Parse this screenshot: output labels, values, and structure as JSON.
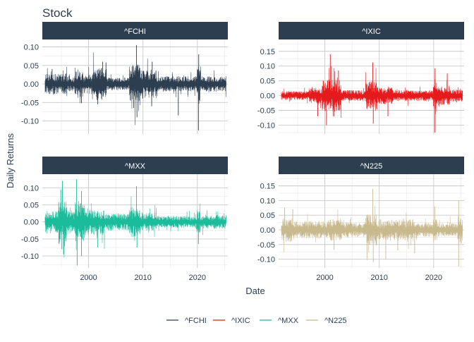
{
  "chart_data": {
    "type": "line",
    "title": "Stock",
    "xlabel": "Date",
    "ylabel": "Daily Returns",
    "x_ticks": [
      2000,
      2010,
      2020
    ],
    "x_range": [
      1991.5,
      2025.6
    ],
    "grid": true,
    "legend_position": "bottom",
    "panels": [
      {
        "name": "^FCHI",
        "color": "#2c3e50",
        "ylim": [
          -0.135,
          0.12
        ],
        "y_ticks": [
          0.1,
          0.05,
          0.0,
          -0.05,
          -0.1
        ],
        "y_tick_labels": [
          "0.10",
          "0.05",
          "0.00",
          "-0.05",
          "-0.10"
        ],
        "x_start": 1992.0,
        "x_end": 2025.3,
        "base_amplitude": 0.013,
        "volatility_regimes": [
          {
            "from": 1992.0,
            "to": 1996.0,
            "level": 1.3
          },
          {
            "from": 1996.0,
            "to": 1997.5,
            "level": 1.0
          },
          {
            "from": 1997.5,
            "to": 1999.0,
            "level": 1.7
          },
          {
            "from": 1999.0,
            "to": 2000.5,
            "level": 1.2
          },
          {
            "from": 2000.5,
            "to": 2003.3,
            "level": 2.0
          },
          {
            "from": 2003.3,
            "to": 2007.5,
            "level": 0.8
          },
          {
            "from": 2007.5,
            "to": 2009.5,
            "level": 2.6
          },
          {
            "from": 2009.5,
            "to": 2012.5,
            "level": 1.7
          },
          {
            "from": 2012.5,
            "to": 2019.9,
            "level": 0.95
          },
          {
            "from": 2019.9,
            "to": 2020.6,
            "level": 2.4
          },
          {
            "from": 2020.6,
            "to": 2025.3,
            "level": 0.95
          }
        ],
        "spikes": [
          {
            "x": 1993.3,
            "y": 0.04
          },
          {
            "x": 1998.7,
            "y": -0.052
          },
          {
            "x": 2001.7,
            "y": -0.055
          },
          {
            "x": 2002.6,
            "y": 0.06
          },
          {
            "x": 2003.2,
            "y": 0.058
          },
          {
            "x": 2008.3,
            "y": -0.065
          },
          {
            "x": 2008.8,
            "y": 0.105
          },
          {
            "x": 2008.9,
            "y": -0.09
          },
          {
            "x": 2011.7,
            "y": 0.06
          },
          {
            "x": 2011.6,
            "y": -0.06
          },
          {
            "x": 2016.5,
            "y": -0.085
          },
          {
            "x": 2020.2,
            "y": -0.125
          },
          {
            "x": 2020.25,
            "y": 0.08
          }
        ]
      },
      {
        "name": "^IXIC",
        "color": "#e41a1c",
        "ylim": [
          -0.13,
          0.19
        ],
        "y_ticks": [
          0.15,
          0.1,
          0.05,
          0.0,
          -0.05,
          -0.1
        ],
        "y_tick_labels": [
          "0.15",
          "0.10",
          "0.05",
          "0.00",
          "-0.05",
          "-0.10"
        ],
        "x_start": 1992.0,
        "x_end": 2025.3,
        "base_amplitude": 0.011,
        "volatility_regimes": [
          {
            "from": 1992.0,
            "to": 1997.0,
            "level": 0.8
          },
          {
            "from": 1997.0,
            "to": 1999.5,
            "level": 1.4
          },
          {
            "from": 1999.5,
            "to": 2003.0,
            "level": 3.0
          },
          {
            "from": 2003.0,
            "to": 2007.5,
            "level": 1.0
          },
          {
            "from": 2007.5,
            "to": 2009.6,
            "level": 2.7
          },
          {
            "from": 2009.6,
            "to": 2012.5,
            "level": 1.6
          },
          {
            "from": 2012.5,
            "to": 2019.9,
            "level": 1.0
          },
          {
            "from": 2019.9,
            "to": 2020.6,
            "level": 2.8
          },
          {
            "from": 2020.6,
            "to": 2023.0,
            "level": 1.8
          },
          {
            "from": 2023.0,
            "to": 2025.3,
            "level": 1.2
          }
        ],
        "spikes": [
          {
            "x": 1998.7,
            "y": -0.07
          },
          {
            "x": 2000.3,
            "y": -0.1
          },
          {
            "x": 2001.0,
            "y": 0.14
          },
          {
            "x": 2001.2,
            "y": 0.1
          },
          {
            "x": 2001.7,
            "y": -0.07
          },
          {
            "x": 2002.5,
            "y": 0.085
          },
          {
            "x": 2008.8,
            "y": 0.112
          },
          {
            "x": 2008.9,
            "y": -0.095
          },
          {
            "x": 2011.6,
            "y": -0.07
          },
          {
            "x": 2020.2,
            "y": -0.125
          },
          {
            "x": 2020.25,
            "y": 0.092
          },
          {
            "x": 2022.5,
            "y": 0.075
          }
        ]
      },
      {
        "name": "^MXX",
        "color": "#1abc9c",
        "ylim": [
          -0.135,
          0.14
        ],
        "y_ticks": [
          0.1,
          0.05,
          0.0,
          -0.05,
          -0.1
        ],
        "y_tick_labels": [
          "0.10",
          "0.05",
          "0.00",
          "-0.05",
          "-0.10"
        ],
        "x_start": 1992.0,
        "x_end": 2025.3,
        "base_amplitude": 0.013,
        "volatility_regimes": [
          {
            "from": 1992.0,
            "to": 1994.5,
            "level": 1.5
          },
          {
            "from": 1994.5,
            "to": 1996.0,
            "level": 3.0
          },
          {
            "from": 1996.0,
            "to": 1997.5,
            "level": 1.6
          },
          {
            "from": 1997.5,
            "to": 1999.3,
            "level": 2.6
          },
          {
            "from": 1999.3,
            "to": 2003.0,
            "level": 1.8
          },
          {
            "from": 2003.0,
            "to": 2007.5,
            "level": 1.1
          },
          {
            "from": 2007.5,
            "to": 2009.6,
            "level": 2.0
          },
          {
            "from": 2009.6,
            "to": 2012.5,
            "level": 1.2
          },
          {
            "from": 2012.5,
            "to": 2019.9,
            "level": 0.8
          },
          {
            "from": 2019.9,
            "to": 2020.6,
            "level": 1.6
          },
          {
            "from": 2020.6,
            "to": 2025.3,
            "level": 0.9
          }
        ],
        "spikes": [
          {
            "x": 1994.9,
            "y": 0.095
          },
          {
            "x": 1995.1,
            "y": -0.08
          },
          {
            "x": 1995.2,
            "y": 0.12
          },
          {
            "x": 1995.4,
            "y": -0.095
          },
          {
            "x": 1997.8,
            "y": 0.125
          },
          {
            "x": 1997.9,
            "y": -0.128
          },
          {
            "x": 1998.7,
            "y": 0.09
          },
          {
            "x": 1998.7,
            "y": -0.1
          },
          {
            "x": 2001.7,
            "y": -0.075
          },
          {
            "x": 2008.8,
            "y": 0.105
          },
          {
            "x": 2008.9,
            "y": -0.075
          },
          {
            "x": 2020.2,
            "y": -0.065
          }
        ]
      },
      {
        "name": "^N225",
        "color": "#c9b98e",
        "ylim": [
          -0.13,
          0.19
        ],
        "y_ticks": [
          0.15,
          0.1,
          0.05,
          0.0,
          -0.05,
          -0.1
        ],
        "y_tick_labels": [
          "0.15",
          "0.10",
          "0.05",
          "0.00",
          "-0.05",
          "-0.10"
        ],
        "x_start": 1992.0,
        "x_end": 2025.3,
        "base_amplitude": 0.014,
        "volatility_regimes": [
          {
            "from": 1992.0,
            "to": 1994.0,
            "level": 1.7
          },
          {
            "from": 1994.0,
            "to": 2000.5,
            "level": 1.3
          },
          {
            "from": 2000.5,
            "to": 2003.3,
            "level": 1.6
          },
          {
            "from": 2003.3,
            "to": 2007.5,
            "level": 1.1
          },
          {
            "from": 2007.5,
            "to": 2009.6,
            "level": 2.2
          },
          {
            "from": 2009.6,
            "to": 2013.5,
            "level": 1.5
          },
          {
            "from": 2013.5,
            "to": 2016.5,
            "level": 1.6
          },
          {
            "from": 2016.5,
            "to": 2019.9,
            "level": 1.0
          },
          {
            "from": 2019.9,
            "to": 2020.6,
            "level": 1.6
          },
          {
            "from": 2020.6,
            "to": 2024.4,
            "level": 1.0
          },
          {
            "from": 2024.4,
            "to": 2025.3,
            "level": 1.9
          }
        ],
        "spikes": [
          {
            "x": 1992.6,
            "y": 0.075
          },
          {
            "x": 1994.1,
            "y": 0.07
          },
          {
            "x": 2001.7,
            "y": -0.068
          },
          {
            "x": 2008.8,
            "y": 0.14
          },
          {
            "x": 2008.9,
            "y": -0.11
          },
          {
            "x": 2011.2,
            "y": -0.1
          },
          {
            "x": 2013.4,
            "y": -0.07
          },
          {
            "x": 2016.5,
            "y": -0.08
          },
          {
            "x": 2024.6,
            "y": -0.125
          },
          {
            "x": 2024.6,
            "y": 0.1
          },
          {
            "x": 2020.2,
            "y": 0.08
          }
        ]
      }
    ]
  },
  "colors": {
    "strip_background": "#2c3e50",
    "strip_text": "#ffffff",
    "grid_major": "#c8c8c8",
    "grid_minor": "#e6e6e6",
    "axis_text": "#2c3e50"
  }
}
